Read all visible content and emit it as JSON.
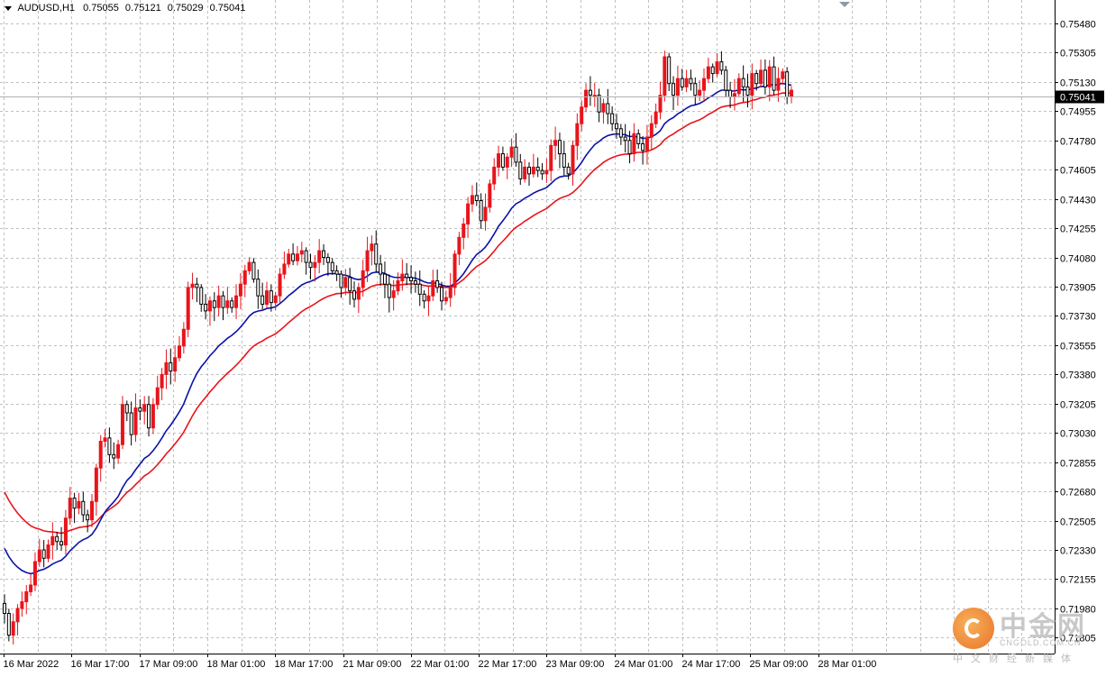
{
  "header": {
    "symbol": "AUDUSD,H1",
    "open": "0.75055",
    "high": "0.75121",
    "low": "0.75029",
    "close": "0.75041"
  },
  "watermark": {
    "title": "中金网",
    "url": "CNGOLD.COM.CN",
    "tagline": "中文财经新媒体"
  },
  "colors": {
    "background": "#ffffff",
    "grid": "#c0c0c0",
    "bull_candle": "#e8141c",
    "bear_candle": "#000000",
    "ma_fast": "#0a12a8",
    "ma_slow": "#e8141c",
    "price_line": "#b0b0b0",
    "price_label_bg": "#000000"
  },
  "chart_data": {
    "type": "candlestick",
    "timeframe": "H1",
    "current_price": 0.75041,
    "current_price_label": "0.75041",
    "ylim": [
      0.7171,
      0.7562
    ],
    "y_ticks": [
      "0.75480",
      "0.75305",
      "0.75130",
      "0.74955",
      "0.74780",
      "0.74605",
      "0.74430",
      "0.74255",
      "0.74080",
      "0.73905",
      "0.73730",
      "0.73555",
      "0.73380",
      "0.73205",
      "0.73030",
      "0.72855",
      "0.72680",
      "0.72505",
      "0.72330",
      "0.72155",
      "0.71980",
      "0.71805"
    ],
    "x_ticks": [
      "16 Mar 2022",
      "16 Mar 17:00",
      "17 Mar 09:00",
      "18 Mar 01:00",
      "18 Mar 17:00",
      "21 Mar 09:00",
      "22 Mar 01:00",
      "22 Mar 17:00",
      "23 Mar 09:00",
      "24 Mar 01:00",
      "24 Mar 17:00",
      "25 Mar 09:00",
      "28 Mar 01:00"
    ],
    "grid": true,
    "closes": [
      0.7195,
      0.7182,
      0.719,
      0.7198,
      0.7202,
      0.7208,
      0.7212,
      0.7226,
      0.7233,
      0.7228,
      0.7236,
      0.7241,
      0.7238,
      0.7236,
      0.7252,
      0.7264,
      0.7258,
      0.7262,
      0.7254,
      0.7251,
      0.7262,
      0.7282,
      0.7298,
      0.73,
      0.729,
      0.7288,
      0.7296,
      0.732,
      0.7315,
      0.7302,
      0.7318,
      0.7316,
      0.732,
      0.7306,
      0.732,
      0.733,
      0.7338,
      0.7345,
      0.734,
      0.7348,
      0.7355,
      0.7365,
      0.739,
      0.7392,
      0.739,
      0.738,
      0.7376,
      0.7382,
      0.7378,
      0.7385,
      0.7378,
      0.7382,
      0.7378,
      0.7385,
      0.7392,
      0.74,
      0.7405,
      0.7395,
      0.7385,
      0.738,
      0.7388,
      0.7381,
      0.7385,
      0.7398,
      0.7404,
      0.741,
      0.7406,
      0.741,
      0.7412,
      0.7405,
      0.7402,
      0.7405,
      0.7412,
      0.7408,
      0.7405,
      0.74,
      0.7398,
      0.739,
      0.7396,
      0.7388,
      0.7383,
      0.739,
      0.74,
      0.7412,
      0.7416,
      0.7404,
      0.7398,
      0.7392,
      0.7384,
      0.7388,
      0.7394,
      0.7398,
      0.7396,
      0.7394,
      0.7392,
      0.7386,
      0.7382,
      0.7385,
      0.7394,
      0.739,
      0.7382,
      0.7384,
      0.739,
      0.741,
      0.742,
      0.7428,
      0.744,
      0.7445,
      0.7442,
      0.743,
      0.7438,
      0.7452,
      0.7462,
      0.747,
      0.7462,
      0.7468,
      0.7474,
      0.7465,
      0.7455,
      0.7462,
      0.7458,
      0.7462,
      0.746,
      0.7458,
      0.746,
      0.7475,
      0.7478,
      0.747,
      0.7462,
      0.7458,
      0.7475,
      0.7488,
      0.7498,
      0.7508,
      0.7505,
      0.7505,
      0.7495,
      0.75,
      0.7494,
      0.7488,
      0.7485,
      0.748,
      0.7478,
      0.747,
      0.7482,
      0.7476,
      0.7472,
      0.748,
      0.7488,
      0.7495,
      0.7505,
      0.7528,
      0.7512,
      0.7505,
      0.7515,
      0.751,
      0.7515,
      0.7512,
      0.7505,
      0.7508,
      0.7515,
      0.7522,
      0.7518,
      0.7525,
      0.752,
      0.7508,
      0.7504,
      0.7506,
      0.7515,
      0.751,
      0.7505,
      0.7518,
      0.7512,
      0.752,
      0.751,
      0.7522,
      0.7508,
      0.7515,
      0.7519,
      0.7504,
      0.7508
    ],
    "series": [
      {
        "name": "",
        "role": "fast moving average",
        "color": "#0a12a8"
      },
      {
        "name": "",
        "role": "slow moving average",
        "color": "#e8141c"
      }
    ]
  }
}
